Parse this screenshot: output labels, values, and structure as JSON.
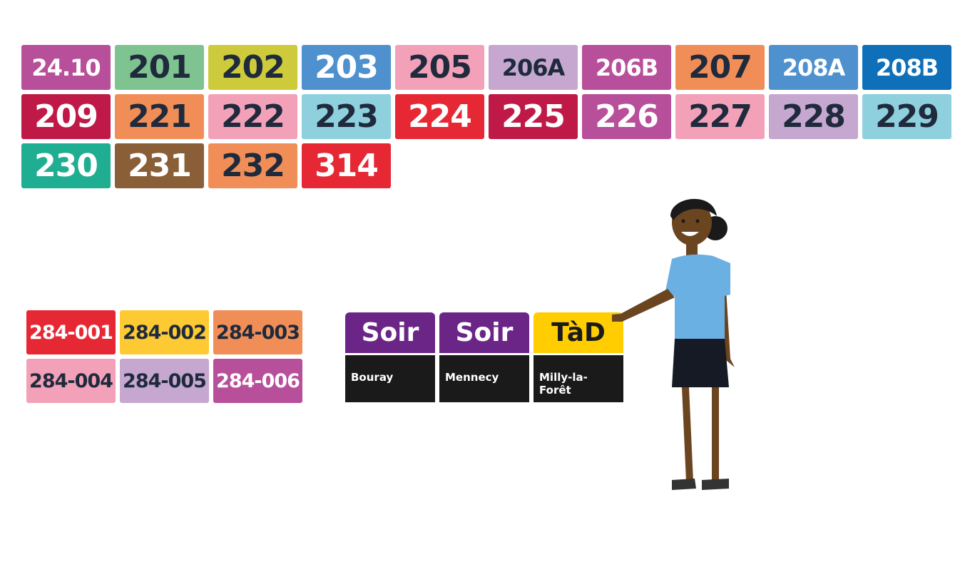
{
  "lines": {
    "row1": [
      {
        "label": "24.10",
        "bg": "#b84f9a",
        "fg": "light",
        "size": "small"
      },
      {
        "label": "201",
        "bg": "#7fc391",
        "fg": "dark",
        "size": "normal"
      },
      {
        "label": "202",
        "bg": "#cdcb3b",
        "fg": "dark",
        "size": "normal"
      },
      {
        "label": "203",
        "bg": "#4f90cf",
        "fg": "light",
        "size": "normal"
      },
      {
        "label": "205",
        "bg": "#f2a1b8",
        "fg": "dark",
        "size": "normal"
      },
      {
        "label": "206A",
        "bg": "#c5a7d0",
        "fg": "dark",
        "size": "small"
      },
      {
        "label": "206B",
        "bg": "#b84f9a",
        "fg": "light",
        "size": "small"
      },
      {
        "label": "207",
        "bg": "#f18e57",
        "fg": "dark",
        "size": "normal"
      },
      {
        "label": "208A",
        "bg": "#4f90cf",
        "fg": "light",
        "size": "small"
      },
      {
        "label": "208B",
        "bg": "#0f6fb8",
        "fg": "light",
        "size": "small"
      }
    ],
    "row2": [
      {
        "label": "209",
        "bg": "#bf1a47",
        "fg": "light",
        "size": "normal"
      },
      {
        "label": "221",
        "bg": "#f18e57",
        "fg": "dark",
        "size": "normal"
      },
      {
        "label": "222",
        "bg": "#f2a1b8",
        "fg": "dark",
        "size": "normal"
      },
      {
        "label": "223",
        "bg": "#8ed0de",
        "fg": "dark",
        "size": "normal"
      },
      {
        "label": "224",
        "bg": "#e62834",
        "fg": "light",
        "size": "normal"
      },
      {
        "label": "225",
        "bg": "#bf1a47",
        "fg": "light",
        "size": "normal"
      },
      {
        "label": "226",
        "bg": "#b84f9a",
        "fg": "light",
        "size": "normal"
      },
      {
        "label": "227",
        "bg": "#f2a1b8",
        "fg": "dark",
        "size": "normal"
      },
      {
        "label": "228",
        "bg": "#c5a7d0",
        "fg": "dark",
        "size": "normal"
      },
      {
        "label": "229",
        "bg": "#8ed0de",
        "fg": "dark",
        "size": "normal"
      }
    ],
    "row3": [
      {
        "label": "230",
        "bg": "#1fae92",
        "fg": "light",
        "size": "normal"
      },
      {
        "label": "231",
        "bg": "#8a5e36",
        "fg": "light",
        "size": "normal"
      },
      {
        "label": "232",
        "bg": "#f18e57",
        "fg": "dark",
        "size": "normal"
      },
      {
        "label": "314",
        "bg": "#e62834",
        "fg": "light",
        "size": "normal"
      }
    ]
  },
  "bus284": {
    "row1": [
      {
        "label": "284-001",
        "bg": "#e62834",
        "fg": "#ffffff"
      },
      {
        "label": "284-002",
        "bg": "#fdca33",
        "fg": "#1f2a3c"
      },
      {
        "label": "284-003",
        "bg": "#f18e57",
        "fg": "#1f2a3c"
      }
    ],
    "row2": [
      {
        "label": "284-004",
        "bg": "#f2a1b8",
        "fg": "#1f2a3c"
      },
      {
        "label": "284-005",
        "bg": "#c5a7d0",
        "fg": "#1f2a3c"
      },
      {
        "label": "284-006",
        "bg": "#b84f9a",
        "fg": "#ffffff"
      }
    ]
  },
  "services": [
    {
      "head": "Soir",
      "head_bg": "#6b2587",
      "head_fg": "#ffffff",
      "body": "Bouray"
    },
    {
      "head": "Soir",
      "head_bg": "#6b2587",
      "head_fg": "#ffffff",
      "body": "Mennecy"
    },
    {
      "head": "TàD",
      "head_bg": "#ffcd00",
      "head_fg": "#1a1a1a",
      "body": "Milly-la-Forêt"
    }
  ],
  "illustration": {
    "icon": "person-pointing-illustration",
    "colors": {
      "skin": "#6b4420",
      "hair": "#1a1a1a",
      "shirt": "#6ab0e2",
      "skirt": "#161a25",
      "shoes": "#333333"
    }
  }
}
